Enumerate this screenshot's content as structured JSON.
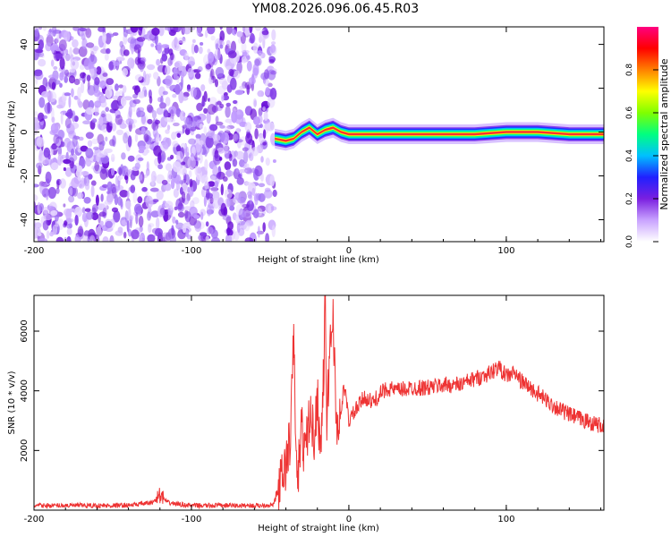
{
  "title": "YM08.2026.096.06.45.R03",
  "chart_data": [
    {
      "type": "heatmap",
      "xlabel": "Height of straight line (km)",
      "ylabel": "Frequency (Hz)",
      "xlim": [
        -200,
        162
      ],
      "ylim": [
        -50,
        48
      ],
      "x_ticks": [
        -200,
        -100,
        0,
        100
      ],
      "x_tick_labels": [
        "-200",
        "-100",
        "0",
        "100"
      ],
      "y_ticks": [
        -40,
        -20,
        0,
        20,
        40
      ],
      "y_tick_labels": [
        "-40",
        "-20",
        "0",
        "20",
        "40"
      ],
      "noise_region_x": [
        -200,
        -47
      ],
      "signal_track": {
        "x": [
          -47,
          -40,
          -35,
          -30,
          -25,
          -20,
          -15,
          -10,
          -5,
          0,
          20,
          40,
          60,
          80,
          100,
          120,
          140,
          162
        ],
        "y": [
          -3,
          -4,
          -3,
          0,
          2,
          -1,
          1,
          2,
          0,
          -1,
          -1,
          -1,
          -1,
          -1,
          0,
          0,
          -1,
          -1
        ]
      },
      "colorbar": {
        "label": "Normalized spectral amplitude",
        "range": [
          0,
          1
        ],
        "ticks": [
          0.0,
          0.2,
          0.4,
          0.6,
          0.8
        ],
        "tick_labels": [
          "0.0",
          "0.2",
          "0.4",
          "0.6",
          "0.8"
        ],
        "colors": [
          "#ffffff",
          "#c9a3ff",
          "#7a1fe0",
          "#2020ff",
          "#00c0ff",
          "#00ff80",
          "#80ff00",
          "#ffff00",
          "#ff8000",
          "#ff0000",
          "#ff0080"
        ]
      },
      "grid": false,
      "legend": "none"
    },
    {
      "type": "line",
      "xlabel": "Height of straight line (km)",
      "ylabel": "SNR (10 * v/v)",
      "xlim": [
        -200,
        162
      ],
      "ylim": [
        0,
        7200
      ],
      "x_ticks": [
        -200,
        -100,
        0,
        100
      ],
      "x_tick_labels": [
        "-200",
        "-100",
        "0",
        "100"
      ],
      "y_ticks": [
        2000,
        4000,
        6000
      ],
      "y_tick_labels": [
        "2000",
        "4000",
        "6000"
      ],
      "color": "#ee3333",
      "series": [
        {
          "x": [
            -200,
            -180,
            -160,
            -140,
            -125,
            -120,
            -115,
            -100,
            -80,
            -60,
            -48,
            -45,
            -40,
            -37,
            -35,
            -33,
            -30,
            -28,
            -25,
            -22,
            -20,
            -18,
            -16,
            -15,
            -14,
            -12,
            -10,
            -8,
            -5,
            -3,
            0,
            5,
            10,
            15,
            20,
            25,
            30,
            40,
            50,
            60,
            70,
            80,
            90,
            95,
            100,
            105,
            110,
            120,
            130,
            140,
            150,
            162
          ],
          "y": [
            150,
            160,
            150,
            160,
            250,
            500,
            250,
            150,
            160,
            150,
            180,
            600,
            1500,
            2500,
            5900,
            700,
            2800,
            1800,
            3200,
            2500,
            3800,
            2000,
            4500,
            7200,
            3000,
            5500,
            6600,
            2800,
            3200,
            4200,
            3000,
            3400,
            3800,
            3600,
            3900,
            4100,
            4000,
            4100,
            4100,
            4200,
            4200,
            4400,
            4600,
            4800,
            4500,
            4600,
            4300,
            3900,
            3500,
            3200,
            3000,
            2800
          ]
        }
      ],
      "grid": false,
      "legend": "none"
    }
  ]
}
